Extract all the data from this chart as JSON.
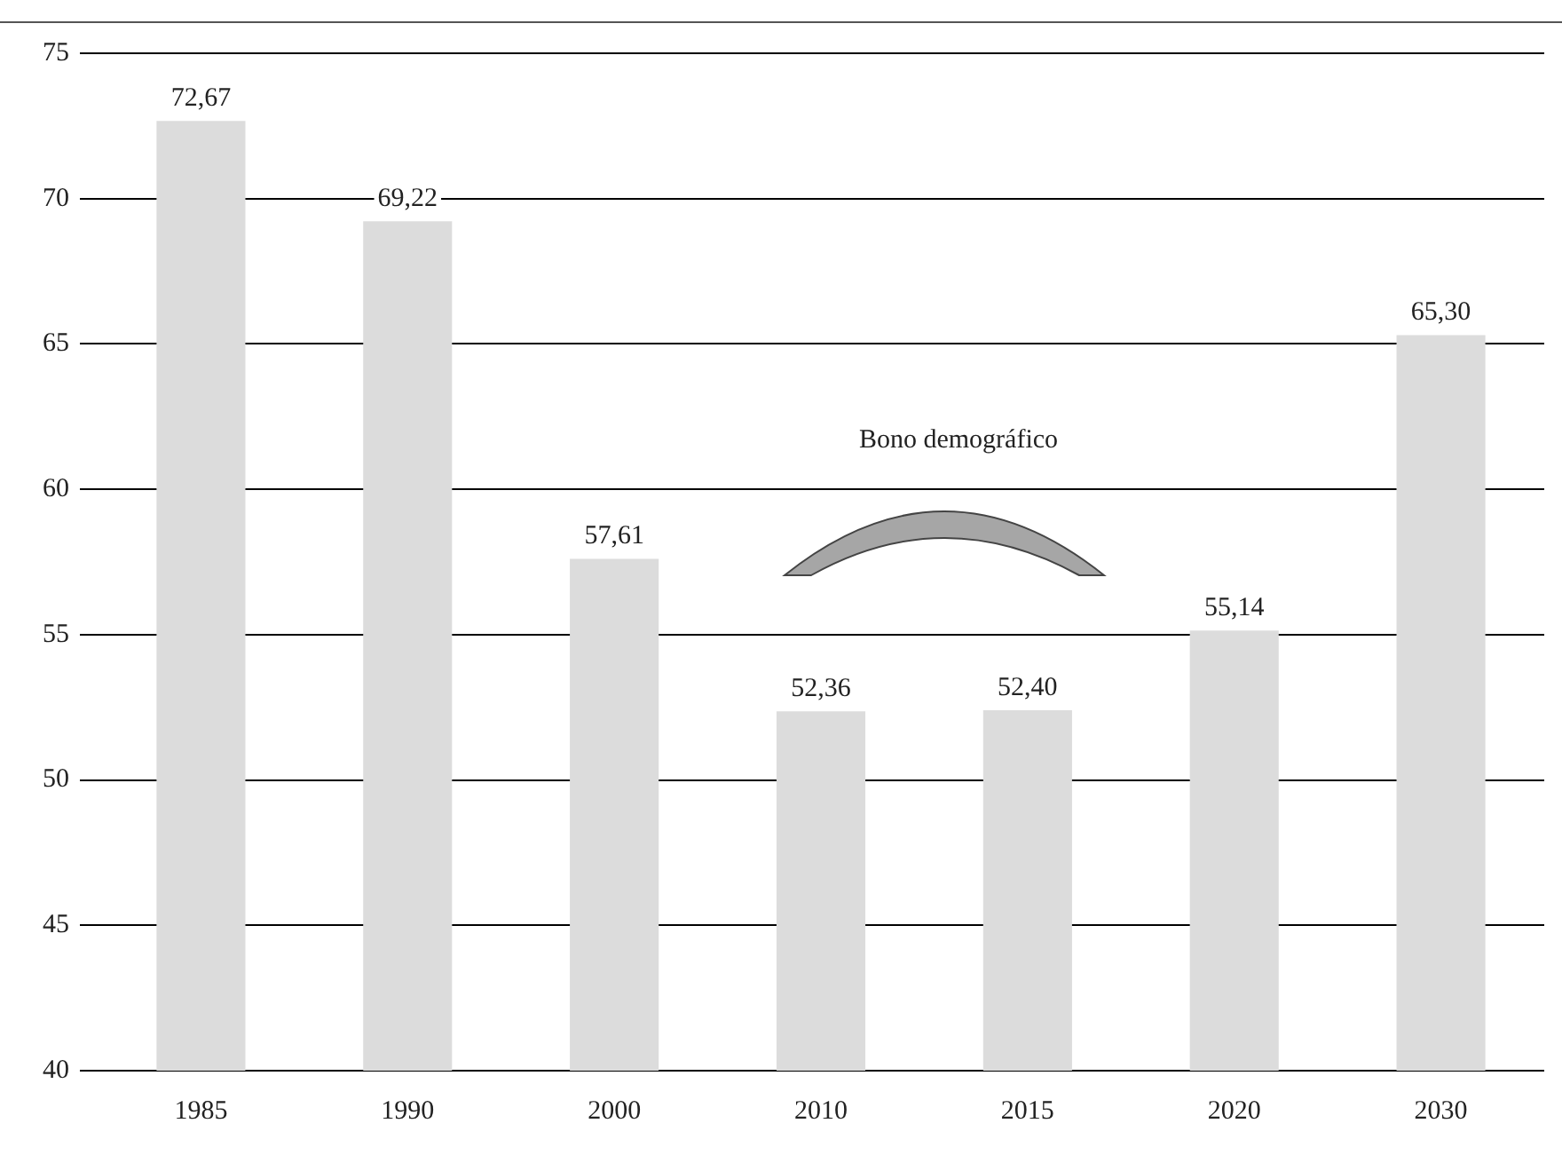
{
  "chart_data": {
    "type": "bar",
    "categories": [
      "1985",
      "1990",
      "2000",
      "2010",
      "2015",
      "2020",
      "2030"
    ],
    "values": [
      72.67,
      69.22,
      57.61,
      52.36,
      52.4,
      55.14,
      65.3
    ],
    "value_labels": [
      "72,67",
      "69,22",
      "57,61",
      "52,36",
      "52,40",
      "55,14",
      "65,30"
    ],
    "color": "#dcdcdc",
    "ylim": [
      40,
      75
    ],
    "yticks": [
      40,
      45,
      50,
      55,
      60,
      65,
      70,
      75
    ],
    "grid": "y",
    "annotations": [
      "Bono demográfico"
    ]
  }
}
